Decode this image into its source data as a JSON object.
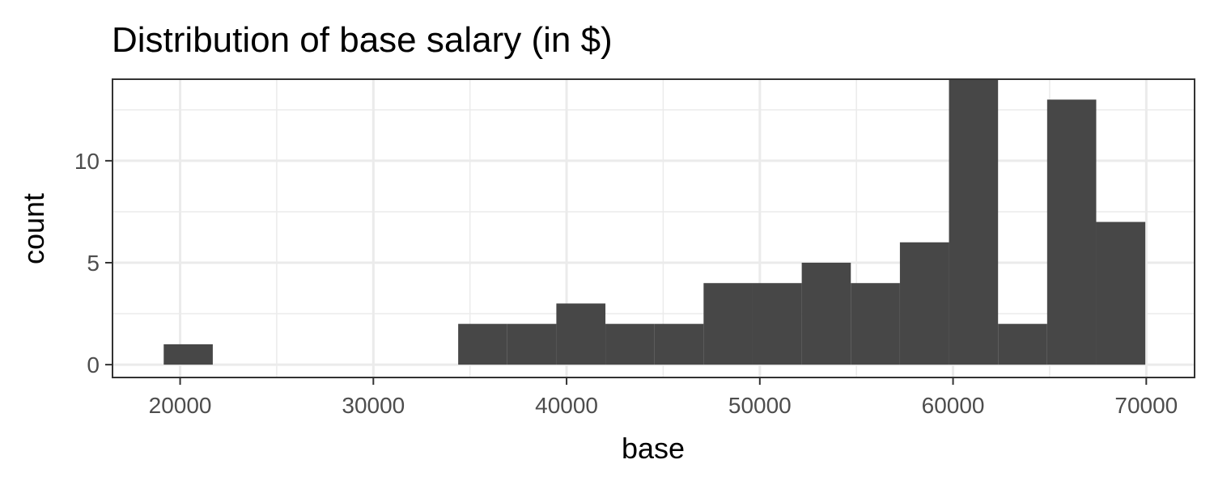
{
  "chart_data": {
    "type": "bar",
    "title": "Distribution of base salary (in $)",
    "xlabel": "base",
    "ylabel": "count",
    "xlim": [
      16500,
      72500
    ],
    "ylim": [
      -0.63,
      14.0
    ],
    "xticks": [
      20000,
      30000,
      40000,
      50000,
      60000,
      70000
    ],
    "xtick_labels": [
      "20000",
      "30000",
      "40000",
      "50000",
      "60000",
      "70000"
    ],
    "xminor": [
      25000,
      35000,
      45000,
      55000,
      65000
    ],
    "yticks": [
      0,
      5,
      10
    ],
    "ytick_labels": [
      "0",
      "5",
      "10"
    ],
    "yminor": [
      2.5,
      7.5,
      12.5
    ],
    "bin_edges": [
      19150,
      21690,
      24230,
      26770,
      29310,
      31850,
      34390,
      36930,
      39470,
      42010,
      44550,
      47090,
      49630,
      52170,
      54710,
      57250,
      59790,
      62330,
      64870,
      67410,
      69950
    ],
    "counts": [
      1,
      0,
      0,
      0,
      0,
      0,
      2,
      2,
      3,
      2,
      2,
      4,
      4,
      5,
      4,
      6,
      14,
      2,
      13,
      7
    ],
    "bar_color": "#474747",
    "grid": true,
    "grid_color": "#ebebeb",
    "panel_border_color": "#333333"
  }
}
